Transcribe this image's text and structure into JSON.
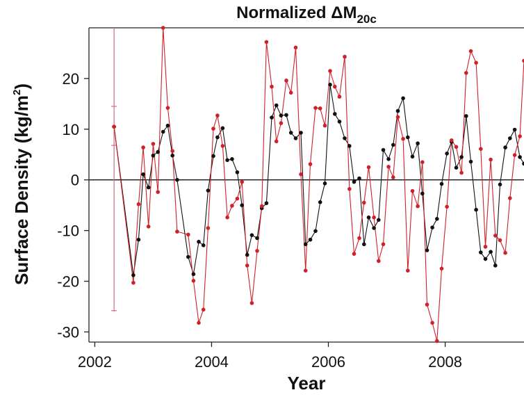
{
  "chart_data": {
    "type": "line",
    "title_parts": {
      "prefix": "Normalized ",
      "symbol": "ΔM",
      "subscript": "20c"
    },
    "xlabel": "Year",
    "ylabel_parts": {
      "main": "Surface Density (kg/m",
      "superscript": "2",
      "suffix": ")"
    },
    "xlim": [
      2001.9,
      2009.35
    ],
    "ylim": [
      -32,
      30
    ],
    "xticks": [
      2002,
      2004,
      2006,
      2008
    ],
    "yticks": [
      -30,
      -20,
      -10,
      0,
      10,
      20
    ],
    "zero_line": true,
    "colors": {
      "series_black": "#111111",
      "series_red": "#d0202a",
      "errorbar": "#c9707e"
    },
    "errorbar": {
      "x": 2002.33,
      "y_low": -26,
      "y_high": 30,
      "caps": [
        14.5,
        6.8,
        -25.8
      ]
    },
    "series": [
      {
        "color": "#111111",
        "points": [
          [
            2002.33,
            10.5
          ],
          [
            2002.66,
            -18.8
          ],
          [
            2002.75,
            -11.8
          ],
          [
            2002.83,
            1.1
          ],
          [
            2002.92,
            -1.5
          ],
          [
            2003.0,
            4.8
          ],
          [
            2003.08,
            5.5
          ],
          [
            2003.17,
            9.5
          ],
          [
            2003.25,
            10.7
          ],
          [
            2003.33,
            4.8
          ],
          [
            2003.41,
            0.0
          ],
          [
            2003.6,
            -15.2
          ],
          [
            2003.69,
            -18.6
          ],
          [
            2003.78,
            -12.2
          ],
          [
            2003.86,
            -12.9
          ],
          [
            2003.94,
            -2.1
          ],
          [
            2004.03,
            4.7
          ],
          [
            2004.1,
            8.4
          ],
          [
            2004.19,
            10.2
          ],
          [
            2004.27,
            3.9
          ],
          [
            2004.35,
            4.1
          ],
          [
            2004.44,
            1.5
          ],
          [
            2004.52,
            -5.0
          ],
          [
            2004.61,
            -14.8
          ],
          [
            2004.69,
            -10.9
          ],
          [
            2004.78,
            -11.5
          ],
          [
            2004.86,
            -5.6
          ],
          [
            2004.94,
            -4.6
          ],
          [
            2005.03,
            12.3
          ],
          [
            2005.11,
            14.7
          ],
          [
            2005.19,
            12.7
          ],
          [
            2005.28,
            12.8
          ],
          [
            2005.36,
            9.3
          ],
          [
            2005.44,
            8.2
          ],
          [
            2005.53,
            9.3
          ],
          [
            2005.61,
            -12.7
          ],
          [
            2005.69,
            -11.8
          ],
          [
            2005.78,
            -10.1
          ],
          [
            2005.86,
            -4.4
          ],
          [
            2005.94,
            -0.7
          ],
          [
            2006.03,
            18.8
          ],
          [
            2006.11,
            13.0
          ],
          [
            2006.19,
            11.5
          ],
          [
            2006.28,
            8.2
          ],
          [
            2006.36,
            6.7
          ],
          [
            2006.44,
            -0.4
          ],
          [
            2006.53,
            0.3
          ],
          [
            2006.61,
            -12.7
          ],
          [
            2006.69,
            -7.4
          ],
          [
            2006.78,
            -9.5
          ],
          [
            2006.86,
            -7.9
          ],
          [
            2006.94,
            5.9
          ],
          [
            2007.03,
            4.1
          ],
          [
            2007.11,
            6.9
          ],
          [
            2007.19,
            13.6
          ],
          [
            2007.28,
            16.1
          ],
          [
            2007.36,
            8.4
          ],
          [
            2007.44,
            4.6
          ],
          [
            2007.53,
            7.2
          ],
          [
            2007.61,
            -2.7
          ],
          [
            2007.69,
            -13.9
          ],
          [
            2007.78,
            -9.4
          ],
          [
            2007.86,
            -7.7
          ],
          [
            2007.94,
            -0.8
          ],
          [
            2008.03,
            5.2
          ],
          [
            2008.11,
            7.5
          ],
          [
            2008.19,
            2.4
          ],
          [
            2008.28,
            4.5
          ],
          [
            2008.36,
            12.6
          ],
          [
            2008.44,
            3.6
          ],
          [
            2008.53,
            -5.9
          ],
          [
            2008.61,
            -14.3
          ],
          [
            2008.69,
            -15.6
          ],
          [
            2008.78,
            -14.2
          ],
          [
            2008.86,
            -16.9
          ],
          [
            2008.94,
            -0.9
          ],
          [
            2009.03,
            6.4
          ],
          [
            2009.11,
            8.2
          ],
          [
            2009.19,
            9.9
          ],
          [
            2009.28,
            4.5
          ],
          [
            2009.35,
            3.2
          ]
        ]
      },
      {
        "color": "#d0202a",
        "points": [
          [
            2002.33,
            10.5
          ],
          [
            2002.66,
            -20.3
          ],
          [
            2002.75,
            -4.8
          ],
          [
            2002.83,
            6.4
          ],
          [
            2002.92,
            -9.2
          ],
          [
            2003.0,
            7.1
          ],
          [
            2003.08,
            -2.4
          ],
          [
            2003.17,
            30.0
          ],
          [
            2003.25,
            14.2
          ],
          [
            2003.33,
            5.7
          ],
          [
            2003.41,
            -10.2
          ],
          [
            2003.6,
            -10.8
          ],
          [
            2003.69,
            -19.9
          ],
          [
            2003.78,
            -28.2
          ],
          [
            2003.86,
            -25.6
          ],
          [
            2003.94,
            -9.5
          ],
          [
            2004.03,
            10.1
          ],
          [
            2004.1,
            12.7
          ],
          [
            2004.19,
            6.7
          ],
          [
            2004.27,
            -7.4
          ],
          [
            2004.35,
            -5.1
          ],
          [
            2004.44,
            -3.7
          ],
          [
            2004.52,
            -0.4
          ],
          [
            2004.61,
            -16.9
          ],
          [
            2004.69,
            -24.3
          ],
          [
            2004.78,
            -14.0
          ],
          [
            2004.86,
            -5.2
          ],
          [
            2004.94,
            27.2
          ],
          [
            2005.03,
            18.4
          ],
          [
            2005.11,
            7.6
          ],
          [
            2005.19,
            11.2
          ],
          [
            2005.28,
            19.6
          ],
          [
            2005.36,
            17.2
          ],
          [
            2005.44,
            26.1
          ],
          [
            2005.53,
            1.1
          ],
          [
            2005.61,
            -17.9
          ],
          [
            2005.69,
            3.1
          ],
          [
            2005.78,
            14.2
          ],
          [
            2005.86,
            14.1
          ],
          [
            2005.94,
            10.7
          ],
          [
            2006.03,
            21.5
          ],
          [
            2006.11,
            18.4
          ],
          [
            2006.19,
            16.4
          ],
          [
            2006.28,
            24.3
          ],
          [
            2006.36,
            -1.8
          ],
          [
            2006.44,
            -14.6
          ],
          [
            2006.53,
            -11.5
          ],
          [
            2006.61,
            -4.5
          ],
          [
            2006.69,
            2.5
          ],
          [
            2006.78,
            -7.4
          ],
          [
            2006.86,
            -16.0
          ],
          [
            2006.94,
            -12.7
          ],
          [
            2007.03,
            2.6
          ],
          [
            2007.11,
            0.5
          ],
          [
            2007.19,
            12.4
          ],
          [
            2007.28,
            8.1
          ],
          [
            2007.36,
            -17.9
          ],
          [
            2007.44,
            -2.2
          ],
          [
            2007.53,
            -5.2
          ],
          [
            2007.61,
            3.5
          ],
          [
            2007.69,
            -24.6
          ],
          [
            2007.78,
            -28.2
          ],
          [
            2007.86,
            -31.8
          ],
          [
            2007.94,
            -17.5
          ],
          [
            2008.03,
            -5.3
          ],
          [
            2008.11,
            7.8
          ],
          [
            2008.19,
            6.5
          ],
          [
            2008.28,
            1.4
          ],
          [
            2008.36,
            21.1
          ],
          [
            2008.44,
            25.4
          ],
          [
            2008.53,
            23.1
          ],
          [
            2008.61,
            6.1
          ],
          [
            2008.69,
            -13.2
          ],
          [
            2008.78,
            4.0
          ],
          [
            2008.86,
            -11.0
          ],
          [
            2008.94,
            -11.9
          ],
          [
            2009.03,
            -14.4
          ],
          [
            2009.11,
            -3.6
          ],
          [
            2009.19,
            4.9
          ],
          [
            2009.28,
            8.6
          ],
          [
            2009.35,
            23.5
          ]
        ]
      }
    ]
  }
}
